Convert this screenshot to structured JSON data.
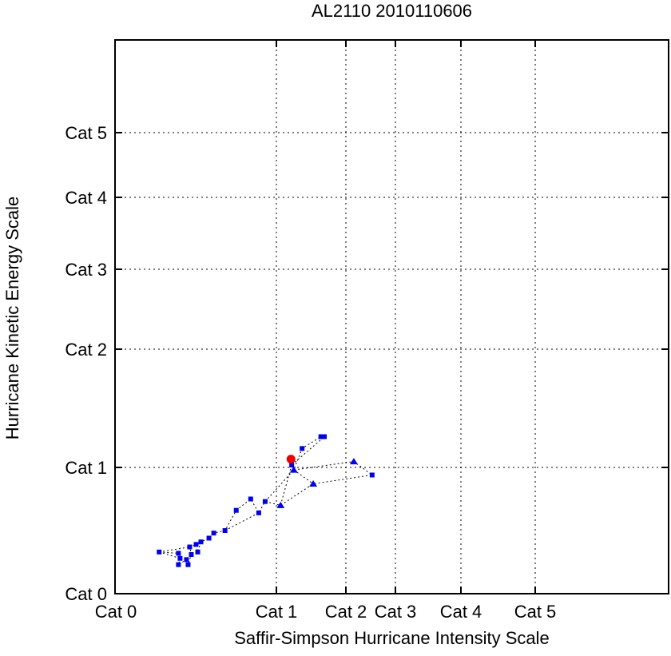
{
  "chart_data": {
    "type": "scatter",
    "title": "AL2110 2010110606",
    "xlabel": "Saffir-Simpson Hurricane Intensity Scale",
    "ylabel": "Hurricane Kinetic Energy Scale",
    "x_ticks": [
      "Cat 0",
      "Cat 1",
      "Cat 2",
      "Cat 3",
      "Cat 4",
      "Cat 5"
    ],
    "y_ticks": [
      "Cat 0",
      "Cat 1",
      "Cat 2",
      "Cat 3",
      "Cat 4",
      "Cat 5"
    ],
    "grid": true,
    "grid_style": "dotted",
    "line_style": "dotted",
    "axis_note": "nonlinear category scales; point coords in category units (e.g. 1.5 = halfway Cat1-Cat2)",
    "x_range_cat": [
      0,
      6.8
    ],
    "y_range_cat": [
      0,
      6.4
    ],
    "legend": "none",
    "series": [
      {
        "name": "storm-track",
        "color": "#0000ee",
        "connected": true,
        "marker_note": "m: s=square, t=triangle",
        "points": [
          {
            "x": 0.27,
            "y": 0.33,
            "m": "s"
          },
          {
            "x": 0.39,
            "y": 0.32,
            "m": "s"
          },
          {
            "x": 0.4,
            "y": 0.28,
            "m": "s"
          },
          {
            "x": 0.39,
            "y": 0.23,
            "m": "s"
          },
          {
            "x": 0.44,
            "y": 0.27,
            "m": "s"
          },
          {
            "x": 0.45,
            "y": 0.23,
            "m": "s"
          },
          {
            "x": 0.47,
            "y": 0.31,
            "m": "s"
          },
          {
            "x": 0.46,
            "y": 0.37,
            "m": "s"
          },
          {
            "x": 0.5,
            "y": 0.39,
            "m": "s"
          },
          {
            "x": 0.51,
            "y": 0.33,
            "m": "s"
          },
          {
            "x": 0.53,
            "y": 0.41,
            "m": "s"
          },
          {
            "x": 0.58,
            "y": 0.44,
            "m": "s"
          },
          {
            "x": 0.61,
            "y": 0.48,
            "m": "s"
          },
          {
            "x": 0.68,
            "y": 0.5,
            "m": "s"
          },
          {
            "x": 0.75,
            "y": 0.66,
            "m": "s"
          },
          {
            "x": 0.84,
            "y": 0.75,
            "m": "s"
          },
          {
            "x": 0.89,
            "y": 0.64,
            "m": "s"
          },
          {
            "x": 0.93,
            "y": 0.73,
            "m": "s"
          },
          {
            "x": 1.06,
            "y": 0.7,
            "m": "t"
          },
          {
            "x": 1.53,
            "y": 0.87,
            "m": "t"
          },
          {
            "x": 2.53,
            "y": 0.94,
            "m": "s"
          },
          {
            "x": 2.16,
            "y": 1.05,
            "m": "t"
          },
          {
            "x": 1.25,
            "y": 0.98,
            "m": "t"
          },
          {
            "x": 1.37,
            "y": 1.16,
            "m": "s"
          },
          {
            "x": 1.64,
            "y": 1.26,
            "m": "s"
          },
          {
            "x": 1.69,
            "y": 1.26,
            "m": "s"
          },
          {
            "x": 1.22,
            "y": 1.02,
            "m": "s"
          }
        ]
      },
      {
        "name": "current-position",
        "color": "#ee0000",
        "marker": "circle",
        "points": [
          {
            "x": 1.21,
            "y": 1.07
          }
        ]
      }
    ],
    "extra_segments": [
      [
        [
          0.27,
          0.33
        ],
        [
          0.46,
          0.37
        ]
      ],
      [
        [
          0.27,
          0.33
        ],
        [
          0.4,
          0.28
        ]
      ],
      [
        [
          0.68,
          0.5
        ],
        [
          0.89,
          0.64
        ]
      ],
      [
        [
          0.93,
          0.73
        ],
        [
          1.25,
          0.98
        ]
      ],
      [
        [
          1.22,
          1.02
        ],
        [
          1.06,
          0.7
        ]
      ],
      [
        [
          1.25,
          0.98
        ],
        [
          1.53,
          0.87
        ]
      ]
    ]
  }
}
